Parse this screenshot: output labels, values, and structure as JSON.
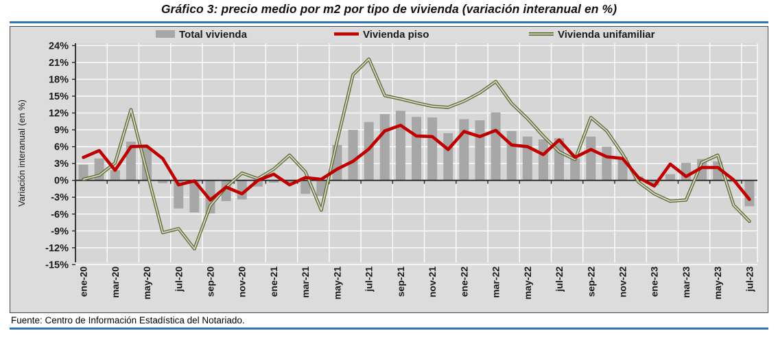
{
  "title": "Gráfico 3: precio medio por m2 por tipo de vivienda (variación interanual en %)",
  "source_note": "Fuente: Centro de Información Estadística del Notariado.",
  "colors": {
    "accent_rule": "#2e75b6",
    "chart_bg": "#dcdcdc",
    "plot_bg": "#d6d6d6",
    "gridline": "#ffffff",
    "axis": "#262626",
    "text": "#1a1a1a",
    "bar": "#a7a7a7",
    "line_piso": "#c00000",
    "line_unifamiliar": "#5f6e2d"
  },
  "chart_data": {
    "type": "bar+line combo",
    "title": "Gráfico 3: precio medio por m2 por tipo de vivienda (variación interanual en %)",
    "xlabel": "",
    "ylabel": "Variación interanual (en %)",
    "ylim": [
      -15,
      24
    ],
    "ytick_step": 3,
    "ytick_format": "percent",
    "grid": true,
    "legend_position": "top",
    "categories": [
      "ene-20",
      "feb-20",
      "mar-20",
      "abr-20",
      "may-20",
      "jun-20",
      "jul-20",
      "ago-20",
      "sep-20",
      "oct-20",
      "nov-20",
      "dic-20",
      "ene-21",
      "feb-21",
      "mar-21",
      "abr-21",
      "may-21",
      "jun-21",
      "jul-21",
      "ago-21",
      "sep-21",
      "oct-21",
      "nov-21",
      "dic-21",
      "ene-22",
      "feb-22",
      "mar-22",
      "abr-22",
      "may-22",
      "jun-22",
      "jul-22",
      "ago-22",
      "sep-22",
      "oct-22",
      "nov-22",
      "dic-22",
      "ene-23",
      "feb-23",
      "mar-23",
      "abr-23",
      "may-23",
      "jun-23",
      "jul-23"
    ],
    "xtick_labels_shown": [
      "ene-20",
      "mar-20",
      "may-20",
      "jul-20",
      "sep-20",
      "nov-20",
      "ene-21",
      "mar-21",
      "may-21",
      "jul-21",
      "sep-21",
      "nov-21",
      "ene-22",
      "mar-22",
      "may-22",
      "jul-22",
      "sep-22",
      "nov-22",
      "ene-23",
      "mar-23",
      "may-23",
      "jul-23"
    ],
    "series": [
      {
        "name": "Total vivienda",
        "type": "bar",
        "color": "#a7a7a7",
        "values": [
          2.8,
          3.9,
          1.8,
          6.9,
          5.9,
          -0.5,
          -5.0,
          -5.7,
          -5.9,
          -3.7,
          -3.4,
          -1.1,
          -0.4,
          -0.6,
          -2.4,
          -2.8,
          6.3,
          9.0,
          10.4,
          11.8,
          12.4,
          11.3,
          11.2,
          8.4,
          10.9,
          10.7,
          12.1,
          8.8,
          7.8,
          7.3,
          7.5,
          3.9,
          7.8,
          6.0,
          4.1,
          0.7,
          -0.9,
          1.1,
          3.1,
          3.8,
          3.4,
          -0.3,
          -4.6
        ]
      },
      {
        "name": "Vivienda piso",
        "type": "line",
        "color": "#c00000",
        "values": [
          4.1,
          5.3,
          1.8,
          6.0,
          6.1,
          3.9,
          -0.8,
          -0.1,
          -3.5,
          -1.2,
          -2.4,
          0.0,
          1.1,
          -0.8,
          0.5,
          0.2,
          2.0,
          3.4,
          5.6,
          8.8,
          9.8,
          7.9,
          7.8,
          5.5,
          8.7,
          7.8,
          8.9,
          6.3,
          6.0,
          4.6,
          7.2,
          4.1,
          5.5,
          4.2,
          3.9,
          0.5,
          -1.0,
          2.9,
          0.7,
          2.3,
          2.3,
          0.1,
          -3.4
        ]
      },
      {
        "name": "Vivienda unifamiliar",
        "type": "line-outlined",
        "color": "#5f6e2d",
        "values": [
          0.2,
          0.9,
          3.1,
          12.6,
          1.6,
          -9.3,
          -8.6,
          -12.2,
          -4.5,
          -1.2,
          1.3,
          0.3,
          2.0,
          4.5,
          1.5,
          -5.3,
          7.0,
          18.8,
          21.6,
          15.1,
          14.5,
          13.8,
          13.2,
          13.0,
          14.1,
          15.6,
          17.6,
          13.7,
          11.0,
          7.9,
          5.1,
          3.7,
          11.2,
          8.8,
          4.7,
          -0.3,
          -2.4,
          -3.7,
          -3.5,
          3.2,
          4.5,
          -4.4,
          -7.3
        ]
      }
    ]
  }
}
